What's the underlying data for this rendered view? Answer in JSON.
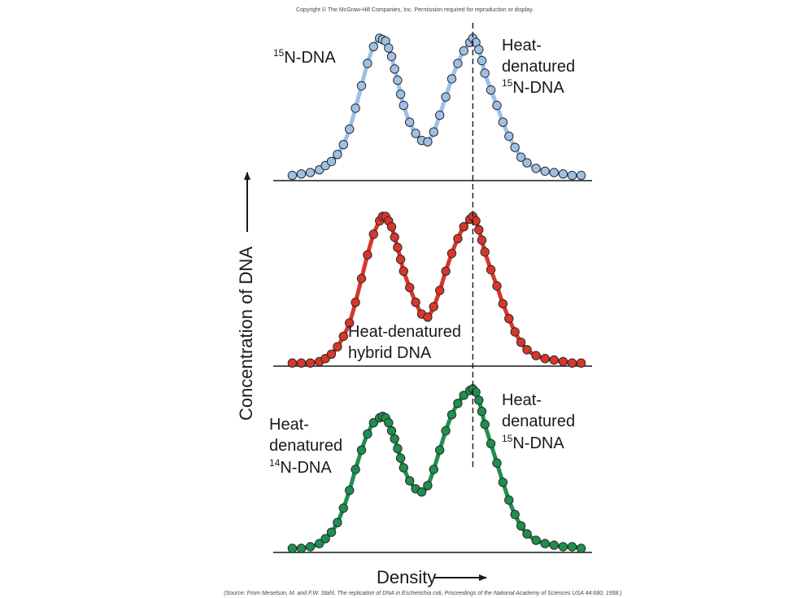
{
  "copyright": "Copyright © The McGraw-Hill Companies, Inc. Permission required for reproduction or display.",
  "source": "(Source: From Meselson, M. and F.W. Stahl, The replication of DNA in Escherichia coli, Proceedings of the National Academy of Sciences USA 44:680, 1958.)",
  "colors": {
    "blue": "#9ec0e6",
    "red": "#d9362b",
    "green": "#1e8f4e",
    "axis": "#1a1a1a"
  },
  "chart_data": {
    "type": "line",
    "xlabel": "Density",
    "ylabel": "Concentration of DNA",
    "x_range": [
      0,
      1
    ],
    "dashed_line_x": 0.62,
    "panels": [
      {
        "name": "top",
        "color": "#9ec0e6",
        "labels": [
          {
            "iso": "15",
            "lines": [
              "N-DNA"
            ]
          },
          {
            "iso": "",
            "lines": [
              "Heat-",
              "denatured"
            ]
          },
          {
            "iso": "15",
            "lines": [
              "N-DNA"
            ]
          }
        ],
        "x": [
          0.02,
          0.05,
          0.08,
          0.11,
          0.13,
          0.15,
          0.17,
          0.19,
          0.21,
          0.23,
          0.25,
          0.27,
          0.29,
          0.31,
          0.32,
          0.33,
          0.34,
          0.35,
          0.36,
          0.37,
          0.38,
          0.39,
          0.41,
          0.43,
          0.45,
          0.47,
          0.49,
          0.51,
          0.53,
          0.55,
          0.57,
          0.59,
          0.61,
          0.62,
          0.63,
          0.64,
          0.65,
          0.66,
          0.68,
          0.7,
          0.72,
          0.74,
          0.76,
          0.78,
          0.8,
          0.83,
          0.86,
          0.89,
          0.92,
          0.95,
          0.98
        ],
        "y": [
          0.02,
          0.03,
          0.04,
          0.06,
          0.09,
          0.12,
          0.17,
          0.24,
          0.35,
          0.5,
          0.66,
          0.82,
          0.94,
          1.0,
          0.99,
          0.98,
          0.93,
          0.87,
          0.78,
          0.7,
          0.6,
          0.52,
          0.4,
          0.32,
          0.27,
          0.26,
          0.33,
          0.45,
          0.58,
          0.71,
          0.82,
          0.91,
          0.97,
          1.0,
          0.97,
          0.92,
          0.84,
          0.75,
          0.63,
          0.52,
          0.4,
          0.3,
          0.22,
          0.15,
          0.11,
          0.07,
          0.05,
          0.04,
          0.03,
          0.02,
          0.02
        ]
      },
      {
        "name": "middle",
        "color": "#d9362b",
        "labels": [
          {
            "iso": "",
            "lines": [
              "Heat-denatured",
              "hybrid DNA"
            ]
          }
        ],
        "x": [
          0.02,
          0.05,
          0.08,
          0.11,
          0.13,
          0.15,
          0.17,
          0.19,
          0.21,
          0.23,
          0.25,
          0.27,
          0.29,
          0.31,
          0.32,
          0.33,
          0.34,
          0.35,
          0.36,
          0.37,
          0.38,
          0.39,
          0.41,
          0.43,
          0.45,
          0.47,
          0.49,
          0.51,
          0.53,
          0.55,
          0.57,
          0.59,
          0.61,
          0.62,
          0.63,
          0.64,
          0.65,
          0.66,
          0.68,
          0.7,
          0.72,
          0.74,
          0.76,
          0.78,
          0.8,
          0.83,
          0.86,
          0.89,
          0.92,
          0.95,
          0.98
        ],
        "y": [
          0.01,
          0.01,
          0.01,
          0.02,
          0.04,
          0.07,
          0.12,
          0.19,
          0.28,
          0.42,
          0.58,
          0.74,
          0.88,
          0.97,
          1.0,
          1.0,
          0.97,
          0.93,
          0.86,
          0.79,
          0.71,
          0.63,
          0.52,
          0.42,
          0.34,
          0.32,
          0.39,
          0.5,
          0.63,
          0.75,
          0.85,
          0.93,
          0.98,
          1.0,
          0.97,
          0.91,
          0.84,
          0.76,
          0.64,
          0.53,
          0.41,
          0.31,
          0.22,
          0.15,
          0.1,
          0.06,
          0.04,
          0.03,
          0.02,
          0.01,
          0.01
        ]
      },
      {
        "name": "bottom",
        "color": "#1e8f4e",
        "labels": [
          {
            "iso": "",
            "lines": [
              "Heat-",
              "denatured"
            ]
          },
          {
            "iso": "14",
            "lines": [
              "N-DNA"
            ]
          },
          {
            "iso": "",
            "lines": [
              "Heat-",
              "denatured"
            ]
          },
          {
            "iso": "15",
            "lines": [
              "N-DNA"
            ]
          }
        ],
        "x": [
          0.02,
          0.05,
          0.08,
          0.11,
          0.13,
          0.15,
          0.17,
          0.19,
          0.21,
          0.23,
          0.25,
          0.27,
          0.29,
          0.31,
          0.32,
          0.33,
          0.34,
          0.35,
          0.36,
          0.37,
          0.38,
          0.39,
          0.41,
          0.43,
          0.45,
          0.47,
          0.49,
          0.51,
          0.53,
          0.55,
          0.57,
          0.59,
          0.61,
          0.62,
          0.63,
          0.64,
          0.65,
          0.66,
          0.68,
          0.7,
          0.72,
          0.74,
          0.76,
          0.78,
          0.8,
          0.83,
          0.86,
          0.89,
          0.92,
          0.95,
          0.98
        ],
        "y": [
          0.01,
          0.01,
          0.02,
          0.04,
          0.07,
          0.11,
          0.17,
          0.26,
          0.37,
          0.5,
          0.62,
          0.72,
          0.79,
          0.82,
          0.83,
          0.82,
          0.79,
          0.74,
          0.69,
          0.63,
          0.57,
          0.51,
          0.43,
          0.38,
          0.36,
          0.4,
          0.5,
          0.62,
          0.74,
          0.84,
          0.91,
          0.96,
          0.99,
          1.0,
          0.98,
          0.93,
          0.86,
          0.78,
          0.66,
          0.54,
          0.42,
          0.31,
          0.22,
          0.15,
          0.1,
          0.06,
          0.04,
          0.03,
          0.02,
          0.02,
          0.01
        ]
      }
    ]
  }
}
